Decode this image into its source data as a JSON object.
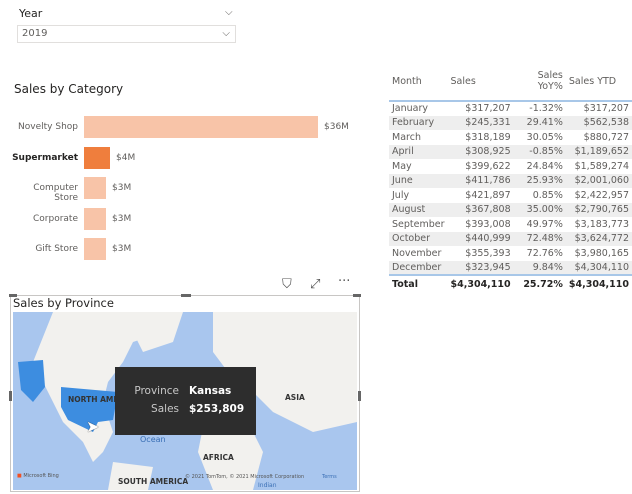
{
  "slicer": {
    "title": "Year",
    "value": "2019"
  },
  "category_chart": {
    "title": "Sales by Category"
  },
  "chart_data": {
    "type": "bar",
    "orientation": "horizontal",
    "title": "Sales by Category",
    "categories": [
      "Novelty Shop",
      "Supermarket",
      "Computer Store",
      "Corporate",
      "Gift Store"
    ],
    "values": [
      36,
      4,
      3,
      3,
      3
    ],
    "labels": [
      "$36M",
      "$4M",
      "$3M",
      "$3M",
      "$3M"
    ],
    "highlighted": "Supermarket",
    "colors": {
      "default": "#f8c4a8",
      "highlight": "#ef7e3d"
    }
  },
  "table": {
    "headers": [
      "Month",
      "Sales",
      "Sales YoY%",
      "Sales YTD"
    ],
    "rows": [
      [
        "January",
        "$317,207",
        "-1.32%",
        "$317,207"
      ],
      [
        "February",
        "$245,331",
        "29.41%",
        "$562,538"
      ],
      [
        "March",
        "$318,189",
        "30.05%",
        "$880,727"
      ],
      [
        "April",
        "$308,925",
        "-0.85%",
        "$1,189,652"
      ],
      [
        "May",
        "$399,622",
        "24.84%",
        "$1,589,274"
      ],
      [
        "June",
        "$411,786",
        "25.93%",
        "$2,001,060"
      ],
      [
        "July",
        "$421,897",
        "0.85%",
        "$2,422,957"
      ],
      [
        "August",
        "$367,808",
        "35.00%",
        "$2,790,765"
      ],
      [
        "September",
        "$393,008",
        "49.97%",
        "$3,183,773"
      ],
      [
        "October",
        "$440,999",
        "72.48%",
        "$3,624,772"
      ],
      [
        "November",
        "$355,393",
        "72.76%",
        "$3,980,165"
      ],
      [
        "December",
        "$323,945",
        "9.84%",
        "$4,304,110"
      ]
    ],
    "total": [
      "Total",
      "$4,304,110",
      "25.72%",
      "$4,304,110"
    ]
  },
  "map": {
    "title": "Sales by Province",
    "labels": {
      "na": "NORTH AMERICA",
      "asia": "ASIA",
      "africa": "AFRICA",
      "sa": "SOUTH AMERICA",
      "ocean": "Ocean",
      "indian": "Indian"
    },
    "bing": "Microsoft Bing",
    "copyright": "© 2021 TomTom, © 2021 Microsoft Corporation",
    "terms": "Terms",
    "tooltip": {
      "k1": "Province",
      "v1": "Kansas",
      "k2": "Sales",
      "v2": "$253,809"
    }
  }
}
